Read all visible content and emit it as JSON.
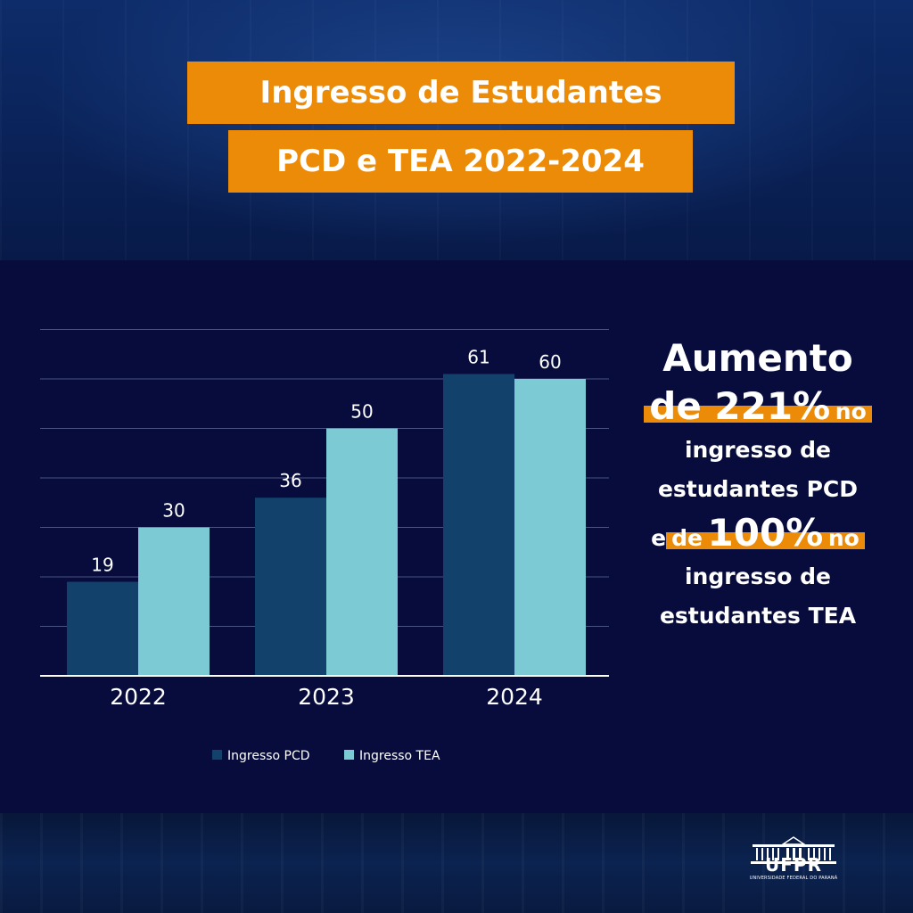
{
  "title": {
    "line1": "Ingresso de Estudantes",
    "line2": "PCD e TEA 2022-2024"
  },
  "highlight": {
    "l1": "Aumento",
    "l2_pct": "de 221%",
    "l2_tail": "no",
    "l3": "ingresso de",
    "l4": "estudantes PCD",
    "l5_pre": "e",
    "l5_de": "de",
    "l5_pct": "100%",
    "l5_tail": "no",
    "l6": "ingresso de",
    "l7": "estudantes TEA"
  },
  "logo": {
    "text": "UFPR",
    "subtitle": "UNIVERSIDADE FEDERAL DO PARANÁ"
  },
  "colors": {
    "accent": "#ec8b08",
    "panel": "#070c3c",
    "pcd": "#12416b",
    "tea": "#7ccad4"
  },
  "chart_data": {
    "type": "bar",
    "categories": [
      "2022",
      "2023",
      "2024"
    ],
    "series": [
      {
        "name": "Ingresso PCD",
        "values": [
          19,
          36,
          61
        ]
      },
      {
        "name": "Ingresso TEA",
        "values": [
          30,
          50,
          60
        ]
      }
    ],
    "ylim": [
      0,
      70
    ],
    "grid": true,
    "legend": "bottom",
    "data_labels": true
  }
}
